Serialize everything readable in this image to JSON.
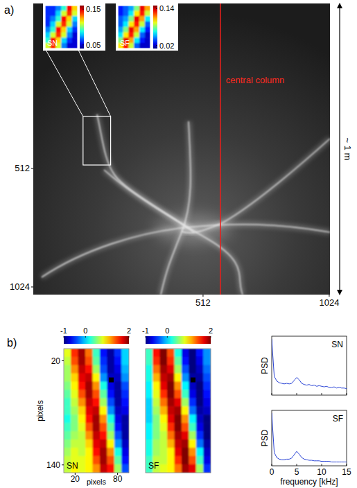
{
  "chart_data": [
    {
      "type": "image",
      "title": "a)",
      "xlim": [
        -177,
        1027
      ],
      "ylim": [
        -201,
        1057
      ],
      "xticks": [
        512,
        1024
      ],
      "yticks": [
        512,
        1024
      ],
      "annotations": [
        {
          "text": "central column",
          "x": 582
        },
        {
          "text": "~ 1 m"
        }
      ],
      "inset_region": {
        "x": [
          25,
          137
        ],
        "y": [
          287,
          497
        ]
      },
      "insets": [
        {
          "name": "SN",
          "color_range": [
            0.04,
            0.16
          ],
          "color_ticks": [
            0.15,
            0.05
          ],
          "cells": [
            [
              0.06,
              0.06,
              0.07,
              0.09,
              0.145,
              0.12
            ],
            [
              0.06,
              0.06,
              0.08,
              0.11,
              0.14,
              0.11
            ],
            [
              0.06,
              0.07,
              0.09,
              0.145,
              0.12,
              0.08
            ],
            [
              0.06,
              0.08,
              0.11,
              0.14,
              0.11,
              0.07
            ],
            [
              0.07,
              0.09,
              0.145,
              0.12,
              0.08,
              0.06
            ],
            [
              0.08,
              0.11,
              0.14,
              0.11,
              0.07,
              0.05
            ],
            [
              0.09,
              0.145,
              0.12,
              0.08,
              0.06,
              0.05
            ],
            [
              0.11,
              0.14,
              0.11,
              0.07,
              0.05,
              0.05
            ]
          ]
        },
        {
          "name": "SF",
          "color_range": [
            0.01,
            0.15
          ],
          "color_ticks": [
            0.14,
            0.02
          ],
          "cells": [
            [
              0.03,
              0.04,
              0.05,
              0.08,
              0.135,
              0.11
            ],
            [
              0.03,
              0.04,
              0.06,
              0.1,
              0.13,
              0.09
            ],
            [
              0.04,
              0.05,
              0.08,
              0.135,
              0.11,
              0.06
            ],
            [
              0.04,
              0.06,
              0.1,
              0.13,
              0.09,
              0.04
            ],
            [
              0.05,
              0.08,
              0.135,
              0.11,
              0.06,
              0.03
            ],
            [
              0.06,
              0.1,
              0.13,
              0.09,
              0.04,
              0.02
            ],
            [
              0.08,
              0.135,
              0.11,
              0.06,
              0.03,
              0.02
            ],
            [
              0.1,
              0.13,
              0.09,
              0.04,
              0.02,
              0.02
            ]
          ]
        }
      ]
    },
    {
      "type": "heatmap",
      "title": "b)",
      "name": "SN",
      "xlim": [
        4,
        96
      ],
      "ylim": [
        6,
        149
      ],
      "xticks": [
        20,
        80
      ],
      "yticks": [
        20,
        140
      ],
      "x_label": "pixels",
      "y_label": "pixels",
      "color_range": [
        -1,
        2
      ],
      "color_ticks": [
        -1,
        0,
        2
      ],
      "marker_point": {
        "x": 71,
        "y": 42
      },
      "marker": "square",
      "cells": [
        [
          0.8,
          1.5,
          1.9,
          1.3,
          0.3,
          -0.6,
          -0.9,
          -0.5,
          0.0
        ],
        [
          0.7,
          1.4,
          1.9,
          1.4,
          0.4,
          -0.5,
          -0.9,
          -0.6,
          0.0
        ],
        [
          0.6,
          1.2,
          1.8,
          1.6,
          0.6,
          -0.4,
          -0.9,
          -0.7,
          -0.1
        ],
        [
          0.6,
          1.0,
          1.7,
          1.8,
          0.9,
          -0.2,
          -0.8,
          -0.8,
          -0.2
        ],
        [
          0.5,
          0.9,
          1.6,
          1.9,
          1.2,
          0.2,
          -0.7,
          -0.9,
          -0.4
        ],
        [
          0.4,
          0.8,
          1.4,
          1.9,
          1.4,
          0.4,
          -0.6,
          -0.9,
          -0.5
        ],
        [
          0.3,
          0.7,
          1.2,
          1.8,
          1.6,
          0.6,
          -0.4,
          -0.9,
          -0.6
        ],
        [
          0.3,
          0.6,
          1.0,
          1.7,
          1.8,
          0.9,
          -0.2,
          -0.8,
          -0.7
        ],
        [
          0.2,
          0.5,
          0.9,
          1.6,
          1.9,
          1.2,
          0.2,
          -0.7,
          -0.9
        ],
        [
          0.3,
          0.5,
          0.8,
          1.4,
          1.9,
          1.4,
          0.4,
          -0.6,
          -0.9
        ],
        [
          0.4,
          0.6,
          0.7,
          1.2,
          1.8,
          1.6,
          0.6,
          -0.4,
          -0.9
        ],
        [
          0.5,
          0.7,
          0.7,
          1.0,
          1.7,
          1.8,
          0.9,
          -0.2,
          -0.8
        ],
        [
          0.6,
          0.8,
          0.7,
          0.9,
          1.6,
          1.9,
          1.2,
          0.2,
          -0.7
        ],
        [
          0.7,
          0.8,
          0.8,
          0.9,
          1.4,
          1.9,
          1.4,
          0.4,
          -0.6
        ],
        [
          0.7,
          0.9,
          0.8,
          0.9,
          1.2,
          1.8,
          1.6,
          0.6,
          -0.4
        ]
      ]
    },
    {
      "type": "heatmap",
      "name": "SF",
      "tick_labels": false,
      "xlim": [
        4,
        96
      ],
      "ylim": [
        6,
        149
      ],
      "color_range": [
        -1,
        2
      ],
      "color_ticks": [
        -1,
        0,
        2
      ],
      "marker_point": {
        "x": 71,
        "y": 42
      },
      "marker": "square",
      "cells": [
        [
          0.3,
          1.6,
          2.0,
          1.4,
          0.2,
          -0.7,
          -1.0,
          -0.6,
          -0.2
        ],
        [
          0.3,
          1.5,
          2.0,
          1.5,
          0.4,
          -0.6,
          -1.0,
          -0.7,
          -0.2
        ],
        [
          0.2,
          1.3,
          1.9,
          1.7,
          0.6,
          -0.4,
          -1.0,
          -0.8,
          -0.3
        ],
        [
          0.2,
          1.1,
          1.8,
          1.9,
          0.9,
          -0.2,
          -0.9,
          -0.9,
          -0.4
        ],
        [
          0.1,
          0.9,
          1.7,
          2.0,
          1.2,
          0.1,
          -0.8,
          -1.0,
          -0.5
        ],
        [
          0.1,
          0.8,
          1.5,
          2.0,
          1.4,
          0.3,
          -0.7,
          -1.0,
          -0.6
        ],
        [
          0.0,
          0.7,
          1.3,
          1.9,
          1.7,
          0.6,
          -0.5,
          -1.0,
          -0.7
        ],
        [
          0.0,
          0.6,
          1.1,
          1.8,
          1.9,
          0.9,
          -0.3,
          -0.9,
          -0.8
        ],
        [
          0.0,
          0.5,
          0.9,
          1.7,
          2.0,
          1.2,
          0.1,
          -0.8,
          -1.0
        ],
        [
          0.1,
          0.5,
          0.8,
          1.5,
          2.0,
          1.4,
          0.3,
          -0.7,
          -1.0
        ],
        [
          0.1,
          0.5,
          0.7,
          1.3,
          1.9,
          1.7,
          0.6,
          -0.5,
          -1.0
        ],
        [
          0.2,
          0.6,
          0.7,
          1.1,
          1.8,
          1.9,
          0.9,
          -0.3,
          -0.9
        ],
        [
          0.2,
          0.6,
          0.7,
          0.9,
          1.7,
          2.0,
          1.2,
          0.1,
          -0.8
        ],
        [
          0.3,
          0.7,
          0.7,
          0.9,
          1.5,
          2.0,
          1.4,
          0.3,
          -0.7
        ],
        [
          0.3,
          0.7,
          0.8,
          0.9,
          1.3,
          1.9,
          1.7,
          0.6,
          -0.5
        ]
      ]
    },
    {
      "type": "line",
      "title": "SN",
      "y_label": "PSD",
      "tick_labels": false,
      "color": "#2b45d6",
      "xlim": [
        0,
        15
      ],
      "ylim": [
        0,
        1
      ],
      "xticks": [
        0,
        5,
        10,
        15
      ],
      "x": [
        0,
        0.5,
        1,
        1.5,
        2,
        2.5,
        3,
        3.5,
        4,
        4.5,
        5,
        5.5,
        6,
        6.5,
        7,
        7.5,
        8,
        8.5,
        9,
        9.5,
        10,
        10.5,
        11,
        11.5,
        12,
        12.5,
        13,
        13.5,
        14,
        14.5,
        15
      ],
      "values": [
        0.95,
        0.32,
        0.24,
        0.21,
        0.2,
        0.19,
        0.2,
        0.19,
        0.2,
        0.25,
        0.3,
        0.26,
        0.2,
        0.18,
        0.17,
        0.18,
        0.16,
        0.17,
        0.15,
        0.16,
        0.15,
        0.14,
        0.15,
        0.13,
        0.13,
        0.14,
        0.12,
        0.13,
        0.12,
        0.12,
        0.11
      ]
    },
    {
      "type": "line",
      "title": "SF",
      "y_label": "PSD",
      "x_label": "frequency [kHz]",
      "tick_labels": "x",
      "color": "#2b45d6",
      "xlim": [
        0,
        15
      ],
      "ylim": [
        0,
        1
      ],
      "xticks": [
        0,
        5,
        10,
        15
      ],
      "x": [
        0,
        0.5,
        1,
        1.5,
        2,
        2.5,
        3,
        3.5,
        4,
        4.5,
        5,
        5.5,
        6,
        6.5,
        7,
        7.5,
        8,
        8.5,
        9,
        9.5,
        10,
        10.5,
        11,
        11.5,
        12,
        12.5,
        13,
        13.5,
        14,
        14.5,
        15
      ],
      "values": [
        0.95,
        0.24,
        0.15,
        0.12,
        0.11,
        0.11,
        0.12,
        0.12,
        0.14,
        0.2,
        0.26,
        0.21,
        0.15,
        0.12,
        0.11,
        0.1,
        0.1,
        0.09,
        0.09,
        0.09,
        0.08,
        0.08,
        0.08,
        0.08,
        0.07,
        0.07,
        0.07,
        0.07,
        0.07,
        0.07,
        0.07
      ]
    }
  ]
}
